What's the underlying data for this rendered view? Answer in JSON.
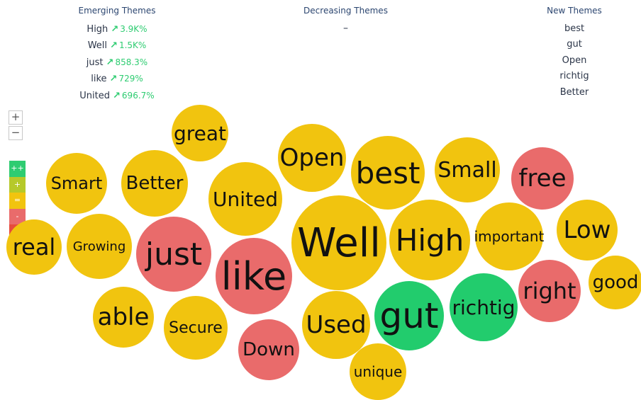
{
  "colors": {
    "yellow": "#f1c40f",
    "red": "#e96b6b",
    "green": "#22cc6d",
    "up_arrow": "#2ecc71",
    "legend": [
      "#2ecc71",
      "#b6c92a",
      "#f1c40f",
      "#e96b6b",
      "#e74c3c"
    ]
  },
  "panels": {
    "emerging": {
      "title": "Emerging Themes",
      "items": [
        {
          "word": "High",
          "change": "3.9K%"
        },
        {
          "word": "Well",
          "change": "1.5K%"
        },
        {
          "word": "just",
          "change": "858.3%"
        },
        {
          "word": "like",
          "change": "729%"
        },
        {
          "word": "United",
          "change": "696.7%"
        }
      ]
    },
    "decreasing": {
      "title": "Decreasing Themes",
      "empty": "–"
    },
    "new": {
      "title": "New Themes",
      "items": [
        "best",
        "gut",
        "Open",
        "richtig",
        "Better"
      ]
    }
  },
  "controls": {
    "zoom_in": "+",
    "zoom_out": "−"
  },
  "legend": [
    "++",
    "+",
    "=",
    "-",
    "--"
  ],
  "bubbles": [
    {
      "word": "great",
      "color": "yellow"
    },
    {
      "word": "Open",
      "color": "yellow"
    },
    {
      "word": "best",
      "color": "yellow"
    },
    {
      "word": "Small",
      "color": "yellow"
    },
    {
      "word": "free",
      "color": "red"
    },
    {
      "word": "Smart",
      "color": "yellow"
    },
    {
      "word": "Better",
      "color": "yellow"
    },
    {
      "word": "United",
      "color": "yellow"
    },
    {
      "word": "real",
      "color": "yellow"
    },
    {
      "word": "Growing",
      "color": "yellow"
    },
    {
      "word": "just",
      "color": "red"
    },
    {
      "word": "like",
      "color": "red"
    },
    {
      "word": "Well",
      "color": "yellow"
    },
    {
      "word": "High",
      "color": "yellow"
    },
    {
      "word": "important",
      "color": "yellow"
    },
    {
      "word": "Low",
      "color": "yellow"
    },
    {
      "word": "good",
      "color": "yellow"
    },
    {
      "word": "right",
      "color": "red"
    },
    {
      "word": "able",
      "color": "yellow"
    },
    {
      "word": "Secure",
      "color": "yellow"
    },
    {
      "word": "Down",
      "color": "red"
    },
    {
      "word": "Used",
      "color": "yellow"
    },
    {
      "word": "gut",
      "color": "green"
    },
    {
      "word": "richtig",
      "color": "green"
    },
    {
      "word": "unique",
      "color": "yellow"
    }
  ]
}
